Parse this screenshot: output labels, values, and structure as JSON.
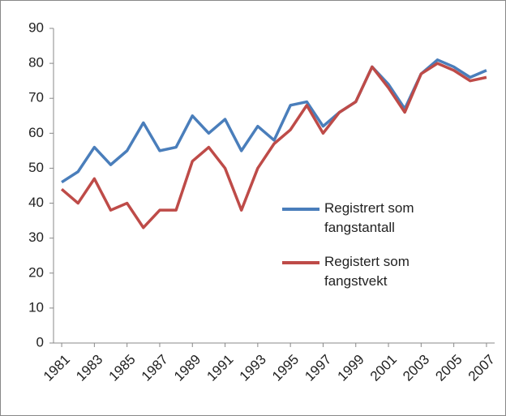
{
  "chart_data": {
    "type": "line",
    "x": [
      1981,
      1982,
      1983,
      1984,
      1985,
      1986,
      1987,
      1988,
      1989,
      1990,
      1991,
      1992,
      1993,
      1994,
      1995,
      1996,
      1997,
      1998,
      1999,
      2000,
      2001,
      2002,
      2003,
      2004,
      2005,
      2006,
      2007
    ],
    "series": [
      {
        "name": "Registrert som fangstantall",
        "color": "#4a7ebb",
        "values": [
          46,
          49,
          56,
          51,
          55,
          63,
          55,
          56,
          65,
          60,
          64,
          55,
          62,
          58,
          68,
          69,
          62,
          66,
          69,
          79,
          74,
          67,
          77,
          81,
          79,
          76,
          78
        ]
      },
      {
        "name": "Registert som fangstvekt",
        "color": "#be4b48",
        "values": [
          44,
          40,
          47,
          38,
          40,
          33,
          38,
          38,
          52,
          56,
          50,
          38,
          50,
          57,
          61,
          68,
          60,
          66,
          69,
          79,
          73,
          66,
          77,
          80,
          78,
          75,
          76
        ]
      }
    ],
    "xlim": [
      1980.5,
      2007.5
    ],
    "xticks": [
      1981,
      1983,
      1985,
      1987,
      1989,
      1991,
      1993,
      1995,
      1997,
      1999,
      2001,
      2003,
      2005,
      2007
    ],
    "ylim": [
      0,
      90
    ],
    "yticks": [
      0,
      10,
      20,
      30,
      40,
      50,
      60,
      70,
      80,
      90
    ],
    "grid": false
  }
}
